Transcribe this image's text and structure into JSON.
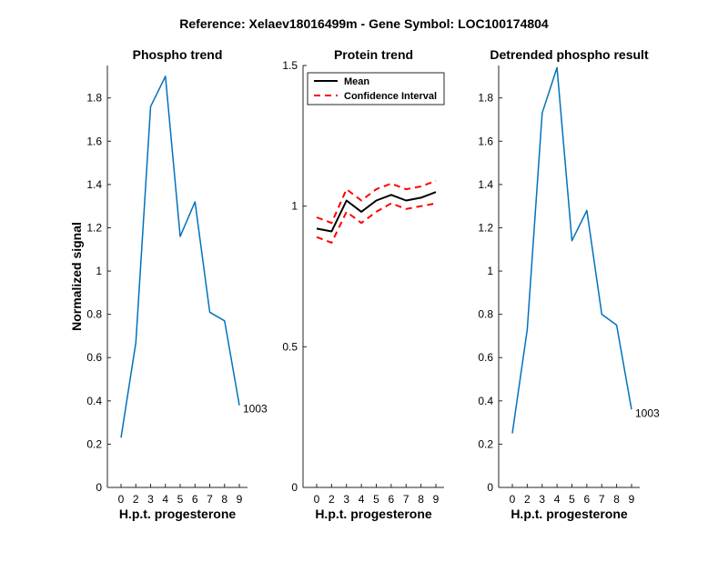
{
  "suptitle": "Reference:  Xelaev18016499m - Gene Symbol:  LOC100174804",
  "colors": {
    "trace": "#0072BD",
    "mean": "#000000",
    "ci": "#FF0000",
    "axis": "#262626"
  },
  "chart_data": [
    {
      "type": "line",
      "title": "Phospho trend",
      "xlabel": "H.p.t. progesterone",
      "ylabel": "Normalized signal",
      "x_ticks": [
        "0",
        "2",
        "3",
        "4",
        "5",
        "6",
        "7",
        "8",
        "9"
      ],
      "y_ticks": [
        "0",
        "0.2",
        "0.4",
        "0.6",
        "0.8",
        "1",
        "1.2",
        "1.4",
        "1.6",
        "1.8"
      ],
      "ylim": [
        0,
        1.95
      ],
      "series": [
        {
          "values": [
            0.23,
            0.67,
            1.76,
            1.9,
            1.16,
            1.32,
            0.81,
            0.77,
            0.38
          ],
          "color": "#0072BD",
          "style": "solid"
        }
      ],
      "annotation": "1003"
    },
    {
      "type": "line",
      "title": "Protein trend",
      "xlabel": "H.p.t. progesterone",
      "ylabel": "",
      "x_ticks": [
        "0",
        "2",
        "3",
        "4",
        "5",
        "6",
        "7",
        "8",
        "9"
      ],
      "y_ticks": [
        "0",
        "0.5",
        "1",
        "1.5"
      ],
      "ylim": [
        0,
        1.5
      ],
      "legend": {
        "position": "top-left",
        "entries": [
          "Mean",
          "Confidence Interval"
        ]
      },
      "series": [
        {
          "name": "Mean",
          "values": [
            0.92,
            0.91,
            1.02,
            0.98,
            1.02,
            1.04,
            1.02,
            1.03,
            1.05
          ],
          "color": "#000000",
          "style": "solid"
        },
        {
          "name": "Confidence Interval",
          "values": [
            0.96,
            0.94,
            1.06,
            1.02,
            1.06,
            1.08,
            1.06,
            1.07,
            1.09
          ],
          "color": "#FF0000",
          "style": "dashed"
        },
        {
          "values": [
            0.89,
            0.87,
            0.98,
            0.94,
            0.98,
            1.01,
            0.99,
            1.0,
            1.01
          ],
          "color": "#FF0000",
          "style": "dashed"
        }
      ]
    },
    {
      "type": "line",
      "title": "Detrended phospho result",
      "xlabel": "H.p.t. progesterone",
      "ylabel": "",
      "x_ticks": [
        "0",
        "2",
        "3",
        "4",
        "5",
        "6",
        "7",
        "8",
        "9"
      ],
      "y_ticks": [
        "0",
        "0.2",
        "0.4",
        "0.6",
        "0.8",
        "1",
        "1.2",
        "1.4",
        "1.6",
        "1.8"
      ],
      "ylim": [
        0,
        1.95
      ],
      "series": [
        {
          "values": [
            0.25,
            0.73,
            1.73,
            1.94,
            1.14,
            1.28,
            0.8,
            0.75,
            0.36
          ],
          "color": "#0072BD",
          "style": "solid"
        }
      ],
      "annotation": "1003"
    }
  ]
}
